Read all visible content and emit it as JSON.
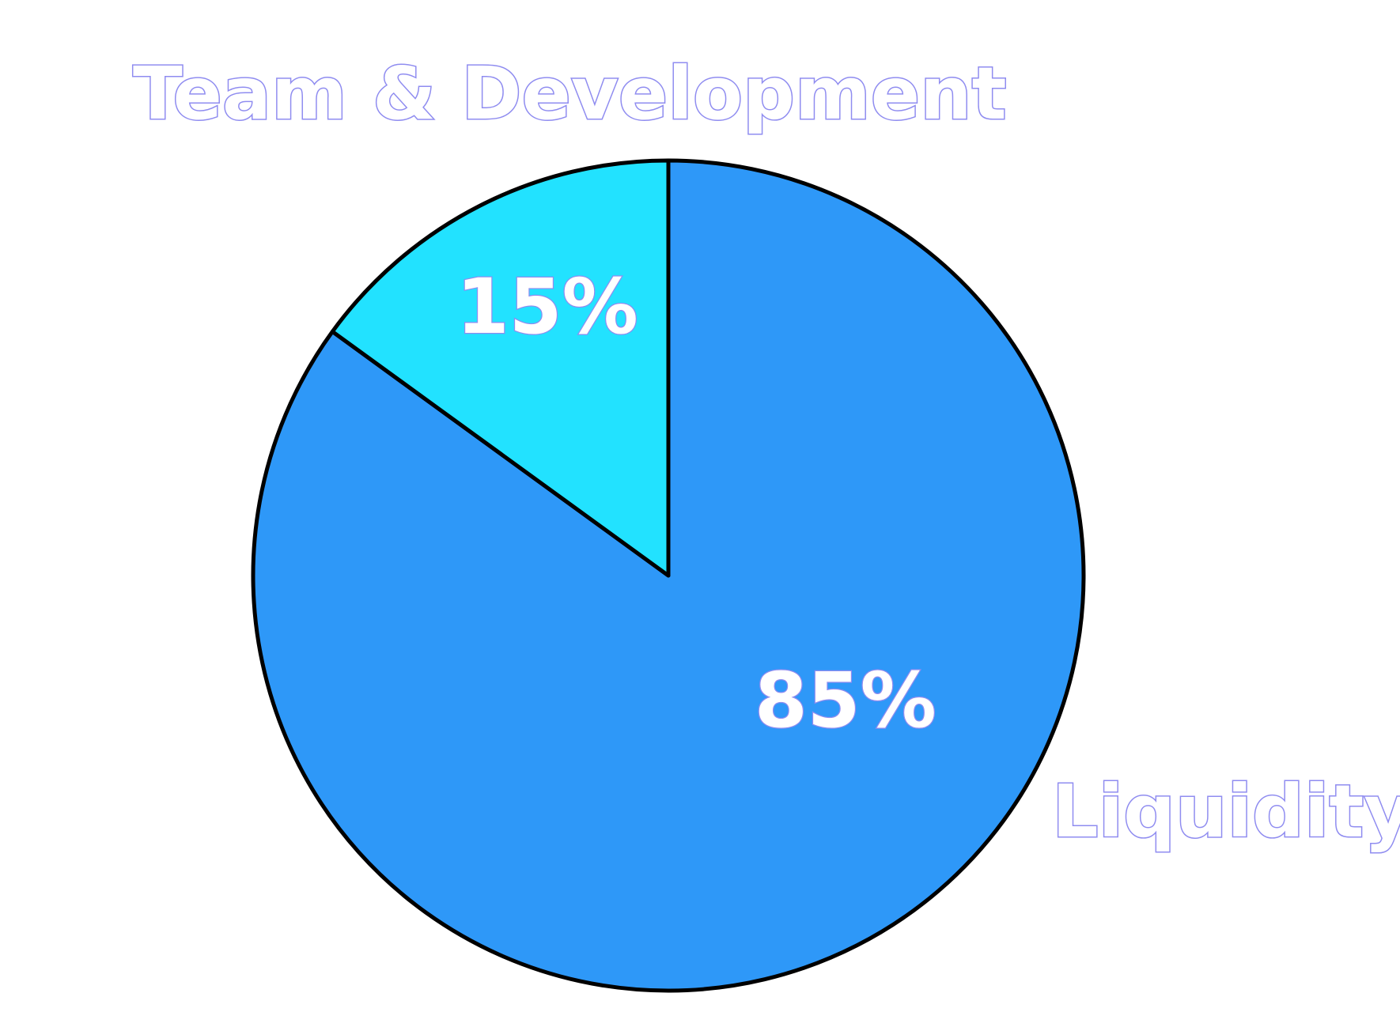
{
  "chart_data": {
    "type": "pie",
    "slices": [
      {
        "label": "Liquidity",
        "value": 85,
        "value_label": "85%",
        "color": "#2e98f8"
      },
      {
        "label": "Team & Development",
        "value": 15,
        "value_label": "15%",
        "color": "#22e2ff"
      }
    ],
    "start_angle_deg": 0,
    "direction": "clockwise",
    "outline_color": "#000000",
    "label_outline_color": "#8f8cf0",
    "legend": "none"
  }
}
